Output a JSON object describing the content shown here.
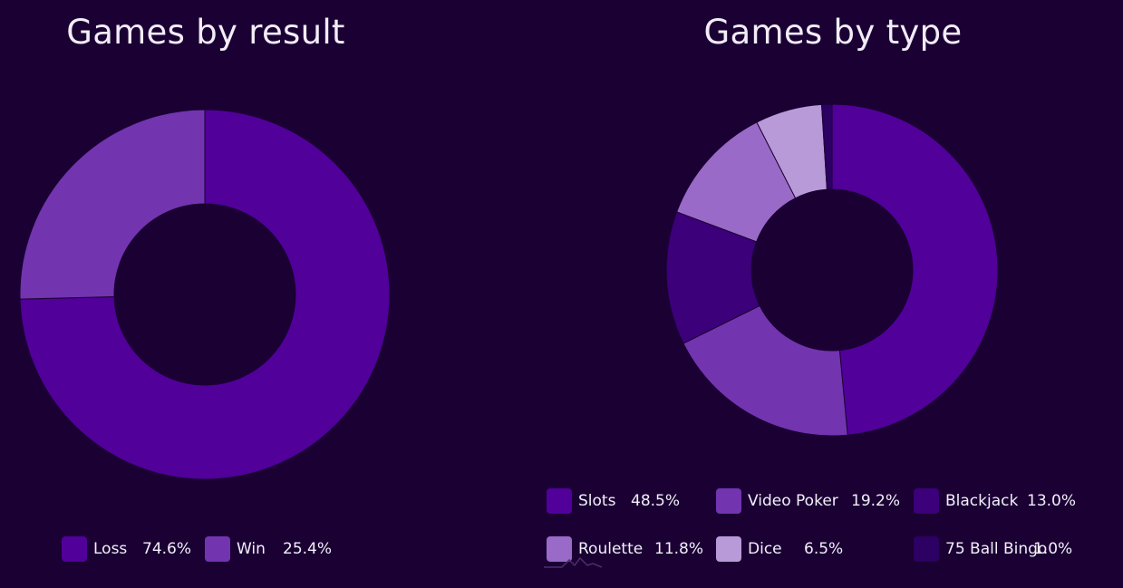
{
  "chart_data": [
    {
      "type": "pie",
      "donut": true,
      "title": "Games by result",
      "slices": [
        {
          "label": "Loss",
          "value": 74.6,
          "display": "74.6%",
          "color": "#51009a"
        },
        {
          "label": "Win",
          "value": 25.4,
          "display": "25.4%",
          "color": "#7334b0"
        }
      ],
      "legend_position": "bottom"
    },
    {
      "type": "pie",
      "donut": true,
      "title": "Games by type",
      "slices": [
        {
          "label": "Slots",
          "value": 48.5,
          "display": "48.5%",
          "color": "#51009a"
        },
        {
          "label": "Video Poker",
          "value": 19.2,
          "display": "19.2%",
          "color": "#7334b0"
        },
        {
          "label": "Blackjack",
          "value": 13.0,
          "display": "13.0%",
          "color": "#3c007a"
        },
        {
          "label": "Roulette",
          "value": 11.8,
          "display": "11.8%",
          "color": "#9a6ac8"
        },
        {
          "label": "Dice",
          "value": 6.5,
          "display": "6.5%",
          "color": "#b99ad8"
        },
        {
          "label": "75 Ball Bingo",
          "value": 1.0,
          "display": "1.0%",
          "color": "#2d0063"
        }
      ],
      "legend_position": "bottom"
    }
  ]
}
